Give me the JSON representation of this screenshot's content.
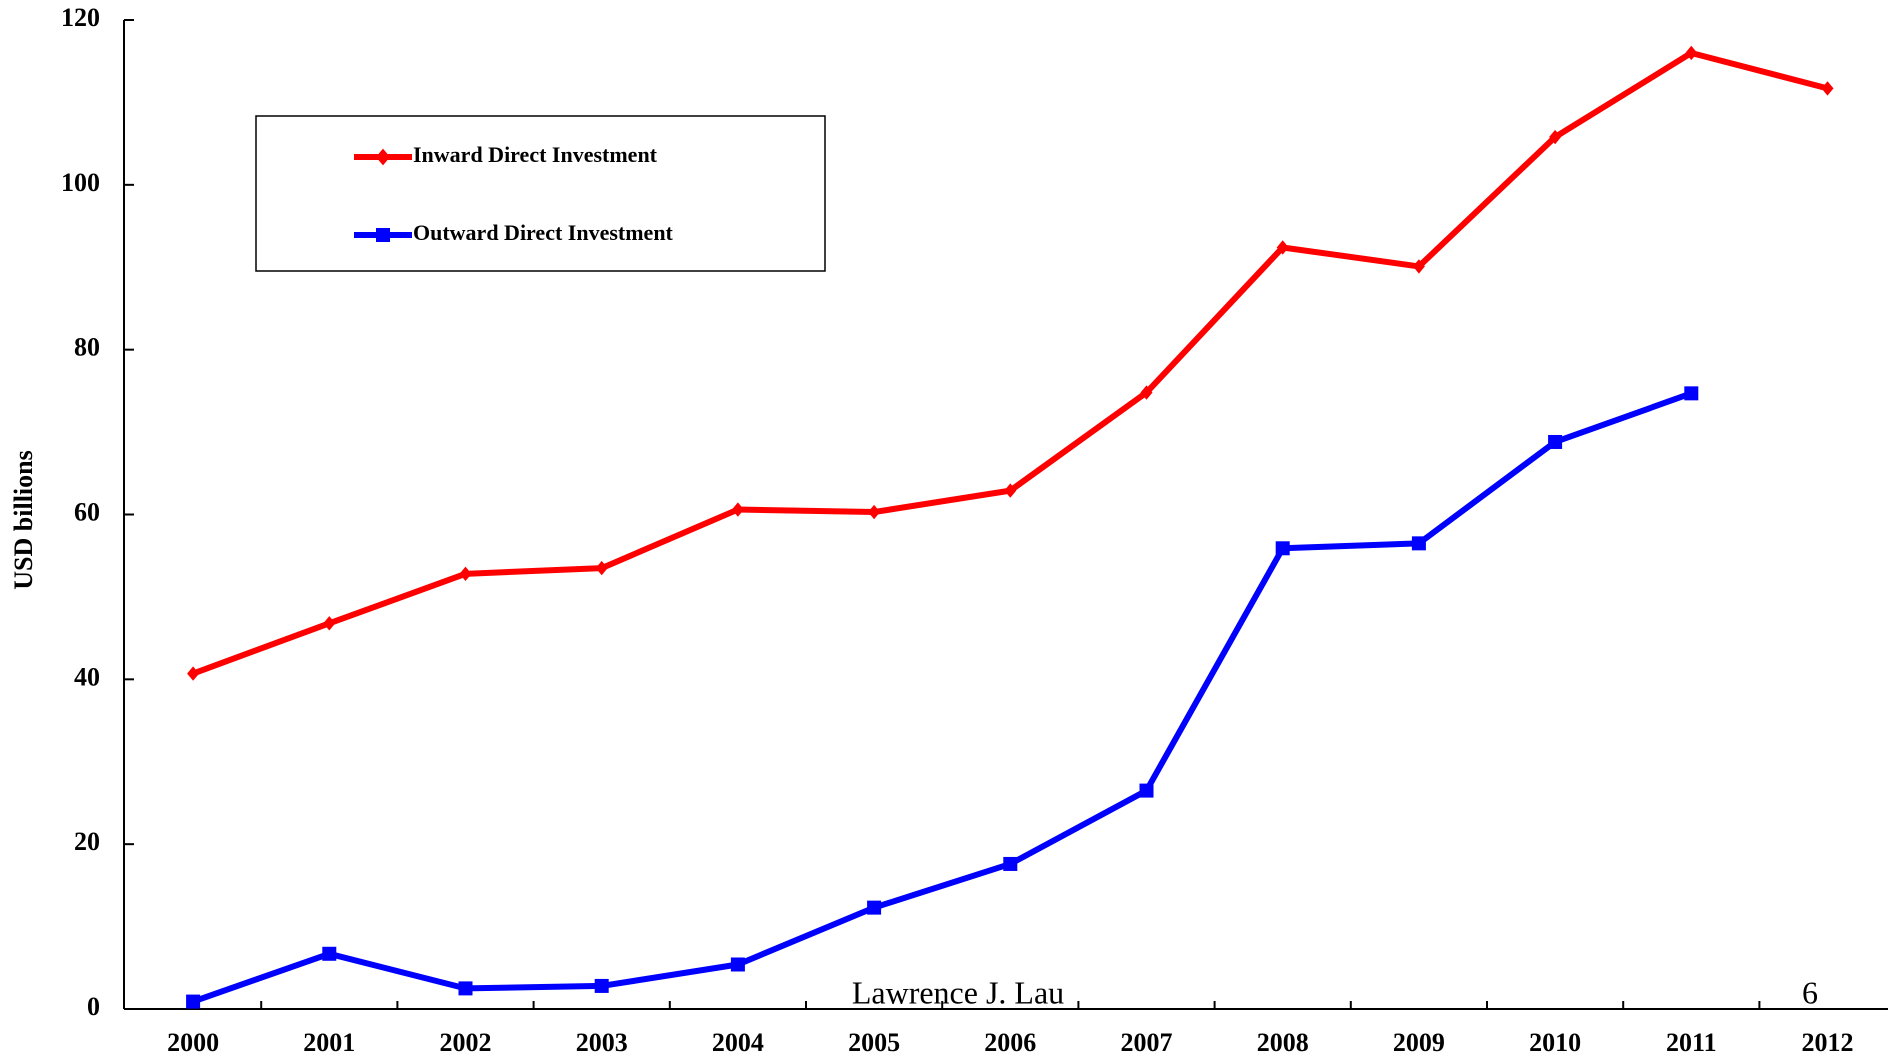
{
  "chart_data": {
    "type": "line",
    "y_label": "USD billions",
    "categories": [
      "2000",
      "2001",
      "2002",
      "2003",
      "2004",
      "2005",
      "2006",
      "2007",
      "2008",
      "2009",
      "2010",
      "2011",
      "2012"
    ],
    "series": [
      {
        "name": "Inward Direct Investment",
        "color": "#ff0000",
        "marker": "diamond",
        "values": [
          40.7,
          46.8,
          52.8,
          53.5,
          60.6,
          60.3,
          62.9,
          74.8,
          92.4,
          90.1,
          105.8,
          116.0,
          111.7
        ]
      },
      {
        "name": "Outward Direct Investment",
        "color": "#0000ff",
        "marker": "square",
        "values": [
          0.9,
          6.7,
          2.5,
          2.8,
          5.4,
          12.3,
          17.6,
          26.5,
          55.9,
          56.5,
          68.8,
          74.7,
          null
        ]
      }
    ],
    "ylim": [
      0,
      120
    ],
    "yticks": [
      0,
      20,
      40,
      60,
      80,
      100,
      120
    ],
    "legend": "upper left",
    "annotations": [
      "Lawrence J. Lau",
      "6"
    ]
  }
}
